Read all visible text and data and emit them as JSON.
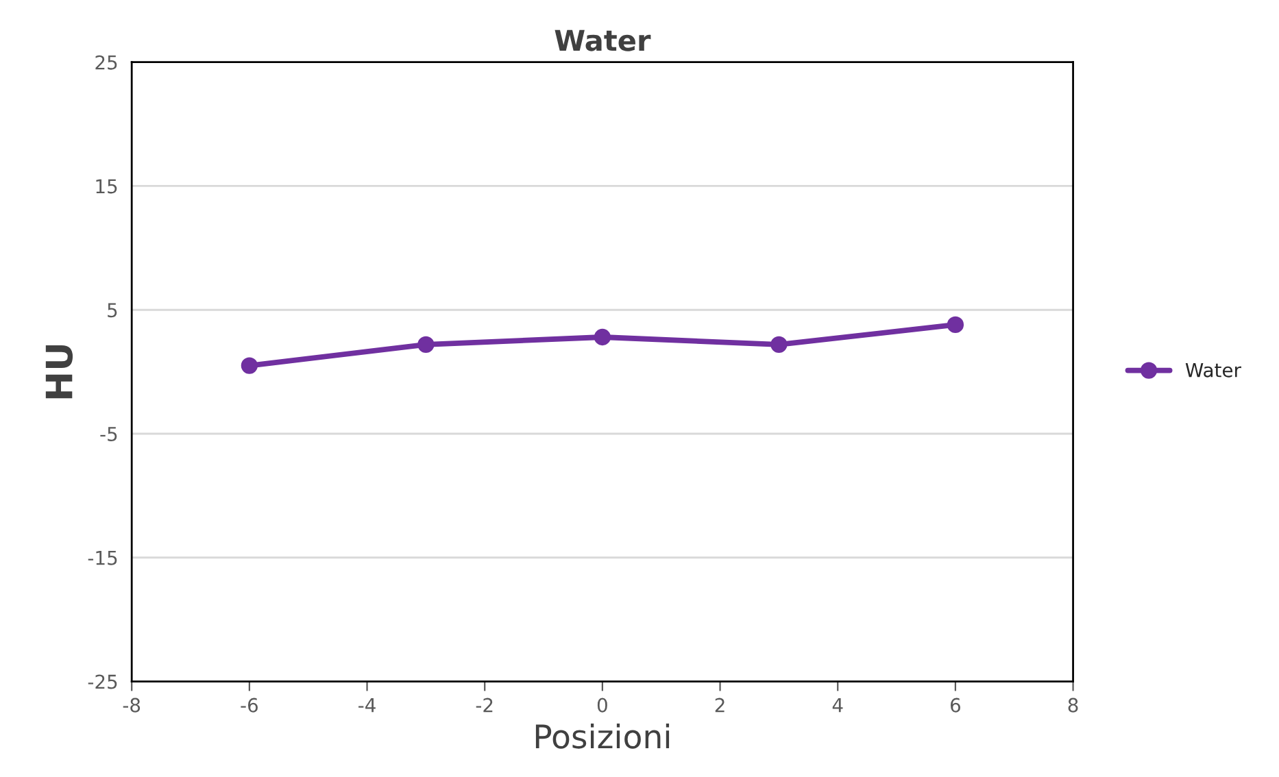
{
  "chart_data": {
    "type": "line",
    "title": "Water",
    "xlabel": "Posizioni",
    "ylabel": "HU",
    "x": [
      -6,
      -3,
      0,
      3,
      6
    ],
    "series": [
      {
        "name": "Water",
        "color": "#7030a0",
        "values": [
          0.5,
          2.2,
          2.8,
          2.2,
          3.8
        ]
      }
    ],
    "xlim": [
      -8,
      8
    ],
    "xticks": [
      -8,
      -6,
      -4,
      -2,
      0,
      2,
      4,
      6,
      8
    ],
    "ylim": [
      -25,
      25
    ],
    "yticks": [
      -25,
      -15,
      -5,
      5,
      15,
      25
    ],
    "grid": "y",
    "legend": "right",
    "marker": "circle",
    "line_style": "solid"
  }
}
